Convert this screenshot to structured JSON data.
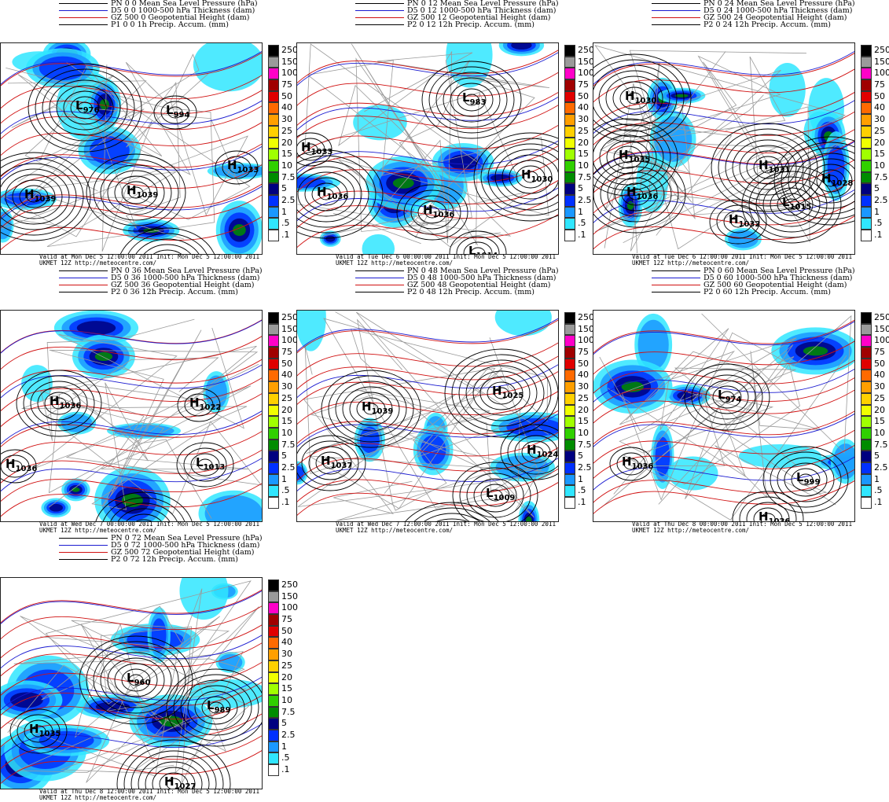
{
  "colorbar": {
    "levels": [
      "250",
      "150",
      "100",
      "75",
      "50",
      "40",
      "30",
      "25",
      "20",
      "15",
      "10",
      "7.5",
      "5",
      "2.5",
      "1",
      ".5",
      ".1"
    ],
    "colors": [
      "#000000",
      "#9a9a9a",
      "#ff00c8",
      "#a00000",
      "#e00000",
      "#ff6a00",
      "#ff9f00",
      "#ffd000",
      "#f0ff00",
      "#a0ff00",
      "#30d000",
      "#008c00",
      "#000080",
      "#0030ff",
      "#1a98ff",
      "#30e6ff",
      "#ffffff"
    ]
  },
  "colors": {
    "mslp": "#000000",
    "thickness": "#1a1ad0",
    "height": "#d01010",
    "coast": "#9a9a9a"
  },
  "panels": [
    {
      "legend": [
        "PN 0 0 Mean Sea Level Pressure (hPa)",
        "D5 0 0 1000-500 hPa Thickness (dam)",
        "GZ 500 0 Geopotential Height (dam)",
        "P1 0 0 1h Precip. Accum. (mm)"
      ],
      "valid": "Valid at Mon Dec  5 12:00:00 2011 Init: Mon Dec  5 12:00:00 2011",
      "model": "UKMET 12Z http://meteocentre.com/",
      "centers": [
        [
          "L",
          "976"
        ],
        [
          "L",
          "994"
        ],
        [
          "H",
          "1033"
        ],
        [
          "H",
          "1039"
        ],
        [
          "H",
          "1039"
        ],
        [
          "L",
          "1011"
        ]
      ]
    },
    {
      "legend": [
        "PN 0 12 Mean Sea Level Pressure (hPa)",
        "D5 0 12 1000-500 hPa Thickness (dam)",
        "GZ 500 12 Geopotential Height (dam)",
        "P2 0 12 12h Precip. Accum. (mm)"
      ],
      "valid": "Valid at Tue Dec  6 00:00:00 2011 Init: Mon Dec  5 12:00:00 2011",
      "model": "UKMET 12Z http://meteocentre.com/",
      "centers": [
        [
          "L",
          "983"
        ],
        [
          "H",
          "1033"
        ],
        [
          "H",
          "1030"
        ],
        [
          "H",
          "1036"
        ],
        [
          "H",
          "1036"
        ],
        [
          "L",
          "1014"
        ]
      ]
    },
    {
      "legend": [
        "PN 0 24 Mean Sea Level Pressure (hPa)",
        "D5 0 24 1000-500 hPa Thickness (dam)",
        "GZ 500 24 Geopotential Height (dam)",
        "P2 0 24 12h Precip. Accum. (mm)"
      ],
      "valid": "Valid at Tue Dec  6 12:00:00 2011 Init: Mon Dec  5 12:00:00 2011",
      "model": "UKMET 12Z http://meteocentre.com/",
      "centers": [
        [
          "H",
          "1030"
        ],
        [
          "H",
          "1035"
        ],
        [
          "H",
          "1031"
        ],
        [
          "H",
          "1028"
        ],
        [
          "H",
          "1036"
        ],
        [
          "L",
          "1015"
        ],
        [
          "H",
          "1032"
        ]
      ]
    },
    {
      "legend": [
        "PN 0 36 Mean Sea Level Pressure (hPa)",
        "D5 0 36 1000-500 hPa Thickness (dam)",
        "GZ 500 36 Geopotential Height (dam)",
        "P2 0 36 12h Precip. Accum. (mm)"
      ],
      "valid": "Valid at Wed Dec  7 00:00:00 2011 Init: Mon Dec  5 12:00:00 2011",
      "model": "UKMET 12Z http://meteocentre.com/",
      "centers": [
        [
          "H",
          "1036"
        ],
        [
          "H",
          "1022"
        ],
        [
          "H",
          "1036"
        ],
        [
          "L",
          "1013"
        ],
        [
          "H",
          "1029"
        ]
      ]
    },
    {
      "legend": [
        "PN 0 48 Mean Sea Level Pressure (hPa)",
        "D5 0 48 1000-500 hPa Thickness (dam)",
        "GZ 500 48 Geopotential Height (dam)",
        "P2 0 48 12h Precip. Accum. (mm)"
      ],
      "valid": "Valid at Wed Dec  7 12:00:00 2011 Init: Mon Dec  5 12:00:00 2011",
      "model": "UKMET 12Z http://meteocentre.com/",
      "centers": [
        [
          "H",
          "1025"
        ],
        [
          "H",
          "1039"
        ],
        [
          "H",
          "1024"
        ],
        [
          "H",
          "1037"
        ],
        [
          "L",
          "1009"
        ],
        [
          "H",
          "1029"
        ]
      ]
    },
    {
      "legend": [
        "PN 0 60 Mean Sea Level Pressure (hPa)",
        "D5 0 60 1000-500 hPa Thickness (dam)",
        "GZ 500 60 Geopotential Height (dam)",
        "P2 0 60 12h Precip. Accum. (mm)"
      ],
      "valid": "Valid at Thu Dec  8 00:00:00 2011 Init: Mon Dec  5 12:00:00 2011",
      "model": "UKMET 12Z http://meteocentre.com/",
      "centers": [
        [
          "L",
          "974"
        ],
        [
          "H",
          "1036"
        ],
        [
          "L",
          "999"
        ],
        [
          "H",
          "1026"
        ]
      ]
    },
    {
      "legend": [
        "PN 0 72 Mean Sea Level Pressure (hPa)",
        "D5 0 72 1000-500 hPa Thickness (dam)",
        "GZ 500 72 Geopotential Height (dam)",
        "P2 0 72 12h Precip. Accum. (mm)"
      ],
      "valid": "Valid at Thu Dec  8 12:00:00 2011 Init: Mon Dec  5 12:00:00 2011",
      "model": "UKMET 12Z http://meteocentre.com/",
      "centers": [
        [
          "L",
          "960"
        ],
        [
          "H",
          "1035"
        ],
        [
          "L",
          "989"
        ],
        [
          "H",
          "1027"
        ]
      ]
    }
  ]
}
